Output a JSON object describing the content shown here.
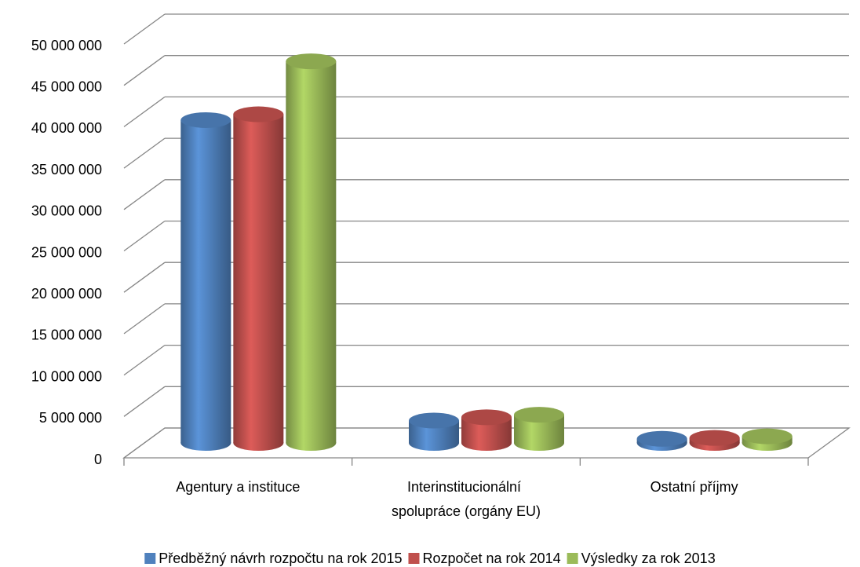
{
  "chart_data": {
    "type": "bar3d",
    "categories": [
      "Agentury a instituce",
      "Interinstitucionální spolupráce (orgány EU)",
      "Ostatní příjmy"
    ],
    "series": [
      {
        "name": "Předběžný návrh rozpočtu na rok 2015",
        "color": "#4f81bd",
        "values": [
          39000000,
          2700000,
          500000
        ]
      },
      {
        "name": "Rozpočet na rok 2014",
        "color": "#c0504d",
        "values": [
          39700000,
          3100000,
          600000
        ]
      },
      {
        "name": "Výsledky za rok 2013",
        "color": "#9bbb59",
        "values": [
          46100000,
          3400000,
          800000
        ]
      }
    ],
    "ylim": [
      0,
      50000000
    ],
    "yticks": [
      0,
      {
        "value": 5000000,
        "label": "5 000 000"
      },
      {
        "value": 10000000,
        "label": "10 000 000"
      },
      {
        "value": 15000000,
        "label": "15 000 000"
      },
      {
        "value": 20000000,
        "label": "20 000 000"
      },
      {
        "value": 25000000,
        "label": "25 000 000"
      },
      {
        "value": 30000000,
        "label": "30 000 000"
      },
      {
        "value": 35000000,
        "label": "35 000 000"
      },
      {
        "value": 40000000,
        "label": "40 000 000"
      },
      {
        "value": 45000000,
        "label": "45 000 000"
      },
      {
        "value": 50000000,
        "label": "50 000 000"
      }
    ],
    "grid": true,
    "legend": "bottom"
  }
}
